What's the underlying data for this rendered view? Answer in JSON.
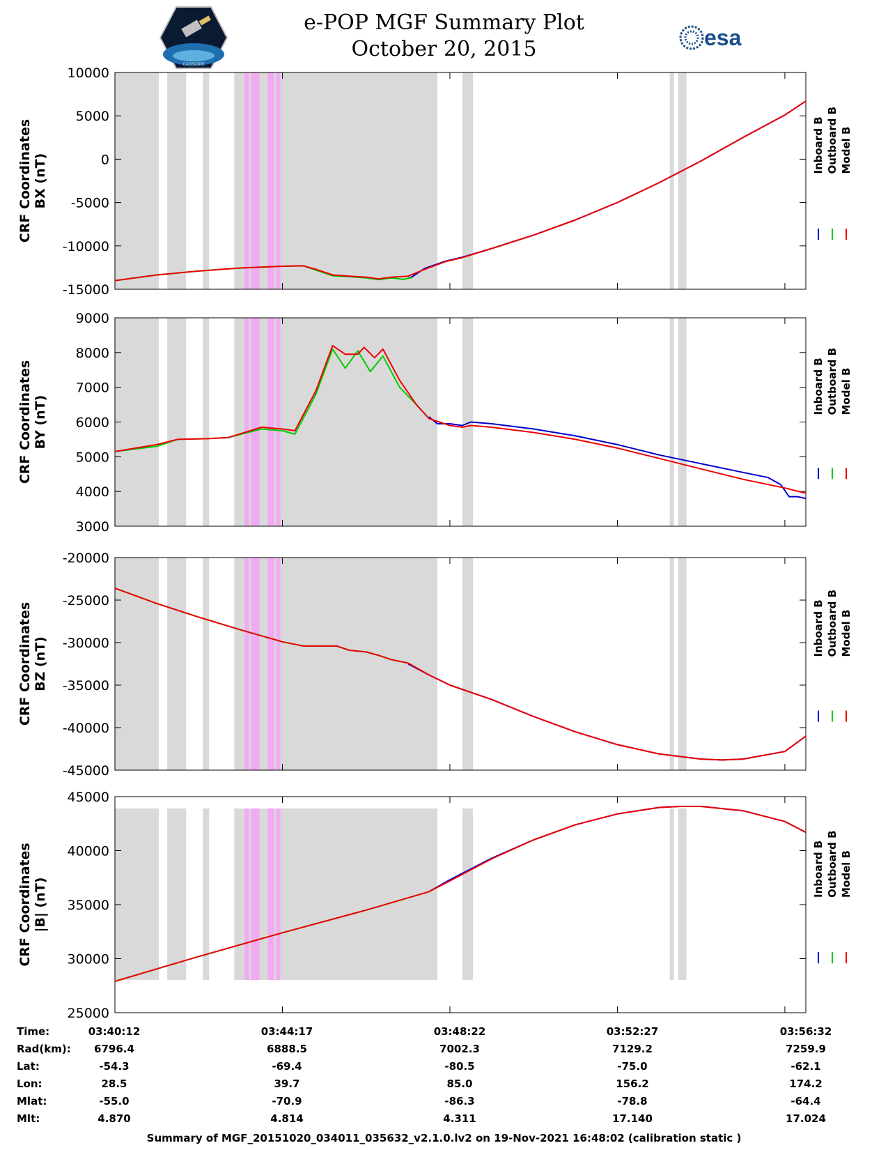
{
  "header": {
    "title_line1": "e-POP MGF Summary Plot",
    "title_line2": "October 20, 2015",
    "logo_left": "cassiope-mission-logo",
    "logo_left_text": "CASSIOPE",
    "logo_right": "esa-logo",
    "logo_right_text": "esa"
  },
  "colors": {
    "inboard": "#0000cc",
    "outboard": "#00cc00",
    "model": "#ee0000",
    "gap_shade": "#d9d9d9",
    "event_shade": "#f2aaf2"
  },
  "chart_data": [
    {
      "type": "line",
      "ylabel": "CRF Coordinates BX (nT)",
      "ylabel_lines": [
        "CRF Coordinates",
        "BX (nT)"
      ],
      "ylim": [
        -15000,
        10000
      ],
      "yticks": [
        10000,
        5000,
        0,
        -5000,
        -10000,
        -15000
      ],
      "legend": [
        "Inboard B",
        "Outboard B",
        "Model B"
      ],
      "series": [
        {
          "name": "Inboard B",
          "points": [
            [
              3.0,
              -13750
            ],
            [
              3.1,
              -13550
            ],
            [
              3.4,
              -12600
            ],
            [
              3.9,
              -11750
            ],
            [
              4.3,
              -11300
            ],
            [
              5.0,
              -10300
            ],
            [
              6.0,
              -8750
            ],
            [
              7.0,
              -7000
            ],
            [
              8.0,
              -5000
            ],
            [
              9.0,
              -2700
            ],
            [
              10.0,
              -200
            ],
            [
              11.0,
              2500
            ],
            [
              12.0,
              5100
            ],
            [
              12.5,
              6700
            ]
          ]
        },
        {
          "name": "Outboard B",
          "points": [
            [
              -4.0,
              -14000
            ],
            [
              -3.0,
              -13350
            ],
            [
              -2.0,
              -12900
            ],
            [
              -1.0,
              -12550
            ],
            [
              0.0,
              -12350
            ],
            [
              0.5,
              -12300
            ],
            [
              0.8,
              -12800
            ],
            [
              1.2,
              -13450
            ],
            [
              1.6,
              -13550
            ],
            [
              2.0,
              -13700
            ],
            [
              2.3,
              -13900
            ],
            [
              2.6,
              -13700
            ],
            [
              2.9,
              -13850
            ],
            [
              3.1,
              -13650
            ]
          ]
        },
        {
          "name": "Model B",
          "points": [
            [
              -4.0,
              -14000
            ],
            [
              -3.0,
              -13350
            ],
            [
              -2.0,
              -12900
            ],
            [
              -1.0,
              -12550
            ],
            [
              0.0,
              -12350
            ],
            [
              0.5,
              -12300
            ],
            [
              0.8,
              -12700
            ],
            [
              1.2,
              -13350
            ],
            [
              1.6,
              -13500
            ],
            [
              2.0,
              -13600
            ],
            [
              2.3,
              -13800
            ],
            [
              2.6,
              -13600
            ],
            [
              3.0,
              -13500
            ],
            [
              3.4,
              -12700
            ],
            [
              3.9,
              -11800
            ],
            [
              4.3,
              -11350
            ],
            [
              5.0,
              -10300
            ],
            [
              6.0,
              -8750
            ],
            [
              7.0,
              -7000
            ],
            [
              8.0,
              -5000
            ],
            [
              9.0,
              -2700
            ],
            [
              10.0,
              -200
            ],
            [
              11.0,
              2500
            ],
            [
              12.0,
              5100
            ],
            [
              12.5,
              6700
            ]
          ]
        }
      ]
    },
    {
      "type": "line",
      "ylabel": "CRF Coordinates BY (nT)",
      "ylabel_lines": [
        "CRF Coordinates",
        "BY (nT)"
      ],
      "ylim": [
        3000,
        9000
      ],
      "yticks": [
        9000,
        8000,
        7000,
        6000,
        5000,
        4000,
        3000
      ],
      "legend": [
        "Inboard B",
        "Outboard B",
        "Model B"
      ],
      "series": [
        {
          "name": "Inboard B",
          "points": [
            [
              3.5,
              6150
            ],
            [
              3.7,
              5950
            ],
            [
              4.0,
              5950
            ],
            [
              4.3,
              5900
            ],
            [
              4.5,
              6000
            ],
            [
              5.0,
              5950
            ],
            [
              6.0,
              5800
            ],
            [
              7.0,
              5600
            ],
            [
              8.0,
              5350
            ],
            [
              9.0,
              5050
            ],
            [
              10.0,
              4800
            ],
            [
              11.0,
              4550
            ],
            [
              11.6,
              4400
            ],
            [
              11.9,
              4200
            ],
            [
              12.1,
              3850
            ],
            [
              12.3,
              3850
            ],
            [
              12.5,
              3800
            ]
          ]
        },
        {
          "name": "Outboard B",
          "points": [
            [
              -4.0,
              5150
            ],
            [
              -3.0,
              5300
            ],
            [
              -2.5,
              5500
            ],
            [
              -1.8,
              5520
            ],
            [
              -1.3,
              5550
            ],
            [
              -0.5,
              5800
            ],
            [
              0.0,
              5750
            ],
            [
              0.3,
              5650
            ],
            [
              0.8,
              6800
            ],
            [
              1.2,
              8100
            ],
            [
              1.5,
              7550
            ],
            [
              1.8,
              8050
            ],
            [
              2.1,
              7450
            ],
            [
              2.4,
              7900
            ],
            [
              2.8,
              7000
            ],
            [
              3.2,
              6500
            ],
            [
              3.5,
              6100
            ]
          ]
        },
        {
          "name": "Model B",
          "points": [
            [
              -4.0,
              5150
            ],
            [
              -3.0,
              5350
            ],
            [
              -2.5,
              5500
            ],
            [
              -1.8,
              5520
            ],
            [
              -1.3,
              5550
            ],
            [
              -0.5,
              5850
            ],
            [
              0.0,
              5800
            ],
            [
              0.3,
              5750
            ],
            [
              0.8,
              6900
            ],
            [
              1.2,
              8200
            ],
            [
              1.5,
              7950
            ],
            [
              1.8,
              7950
            ],
            [
              1.95,
              8150
            ],
            [
              2.2,
              7850
            ],
            [
              2.4,
              8100
            ],
            [
              2.8,
              7200
            ],
            [
              3.2,
              6500
            ],
            [
              3.5,
              6100
            ],
            [
              4.0,
              5900
            ],
            [
              4.3,
              5850
            ],
            [
              4.5,
              5900
            ],
            [
              5.0,
              5850
            ],
            [
              6.0,
              5700
            ],
            [
              7.0,
              5500
            ],
            [
              8.0,
              5250
            ],
            [
              9.0,
              4950
            ],
            [
              10.0,
              4650
            ],
            [
              11.0,
              4350
            ],
            [
              12.0,
              4100
            ],
            [
              12.5,
              3950
            ]
          ]
        }
      ]
    },
    {
      "type": "line",
      "ylabel": "CRF Coordinates BZ (nT)",
      "ylabel_lines": [
        "CRF Coordinates",
        "BZ (nT)"
      ],
      "ylim": [
        -45000,
        -20000
      ],
      "yticks": [
        -20000,
        -25000,
        -30000,
        -35000,
        -40000,
        -45000
      ],
      "legend": [
        "Inboard B",
        "Outboard B",
        "Model B"
      ],
      "series": [
        {
          "name": "Inboard B",
          "points": [
            [
              3.0,
              -32500
            ],
            [
              3.5,
              -33800
            ],
            [
              4.0,
              -35000
            ],
            [
              5.0,
              -36700
            ],
            [
              6.0,
              -38700
            ],
            [
              7.0,
              -40500
            ],
            [
              8.0,
              -42000
            ],
            [
              9.0,
              -43100
            ],
            [
              10.0,
              -43700
            ],
            [
              10.5,
              -43800
            ],
            [
              11.0,
              -43700
            ],
            [
              12.0,
              -42800
            ],
            [
              12.5,
              -41000
            ]
          ]
        },
        {
          "name": "Outboard B",
          "points": [
            [
              -4.0,
              -23600
            ],
            [
              -3.0,
              -25400
            ],
            [
              -2.0,
              -27000
            ],
            [
              -1.0,
              -28500
            ],
            [
              0.0,
              -29900
            ],
            [
              0.5,
              -30400
            ],
            [
              1.0,
              -30400
            ],
            [
              1.3,
              -30400
            ],
            [
              1.6,
              -30900
            ],
            [
              2.0,
              -31100
            ],
            [
              2.3,
              -31500
            ],
            [
              2.6,
              -32000
            ],
            [
              3.0,
              -32400
            ]
          ]
        },
        {
          "name": "Model B",
          "points": [
            [
              -4.0,
              -23600
            ],
            [
              -3.0,
              -25400
            ],
            [
              -2.0,
              -27000
            ],
            [
              -1.0,
              -28500
            ],
            [
              0.0,
              -29900
            ],
            [
              0.5,
              -30400
            ],
            [
              1.0,
              -30400
            ],
            [
              1.3,
              -30400
            ],
            [
              1.6,
              -30900
            ],
            [
              2.0,
              -31100
            ],
            [
              2.3,
              -31500
            ],
            [
              2.6,
              -32000
            ],
            [
              3.0,
              -32400
            ],
            [
              3.5,
              -33800
            ],
            [
              4.0,
              -35000
            ],
            [
              5.0,
              -36700
            ],
            [
              6.0,
              -38700
            ],
            [
              7.0,
              -40500
            ],
            [
              8.0,
              -42000
            ],
            [
              9.0,
              -43100
            ],
            [
              10.0,
              -43700
            ],
            [
              10.5,
              -43800
            ],
            [
              11.0,
              -43700
            ],
            [
              12.0,
              -42800
            ],
            [
              12.5,
              -41000
            ]
          ]
        }
      ]
    },
    {
      "type": "line",
      "ylabel": "CRF Coordinates |B| (nT)",
      "ylabel_lines": [
        "CRF Coordinates",
        "|B| (nT)"
      ],
      "ylim": [
        25000,
        45000
      ],
      "yticks": [
        45000,
        40000,
        35000,
        30000,
        25000
      ],
      "legend": [
        "Inboard B",
        "Outboard B",
        "Model B"
      ],
      "series": [
        {
          "name": "Inboard B",
          "points": [
            [
              3.5,
              36200
            ],
            [
              4.0,
              37300
            ],
            [
              5.0,
              39300
            ],
            [
              6.0,
              41000
            ],
            [
              7.0,
              42400
            ],
            [
              8.0,
              43400
            ],
            [
              9.0,
              44000
            ],
            [
              9.5,
              44100
            ],
            [
              10.0,
              44100
            ],
            [
              11.0,
              43700
            ],
            [
              12.0,
              42700
            ],
            [
              12.5,
              41700
            ]
          ]
        },
        {
          "name": "Outboard B",
          "points": [
            [
              -4.0,
              27900
            ],
            [
              -2.0,
              30200
            ],
            [
              0.0,
              32400
            ],
            [
              2.0,
              34500
            ],
            [
              3.5,
              36200
            ]
          ]
        },
        {
          "name": "Model B",
          "points": [
            [
              -4.0,
              27900
            ],
            [
              -2.0,
              30200
            ],
            [
              0.0,
              32400
            ],
            [
              2.0,
              34500
            ],
            [
              3.5,
              36200
            ],
            [
              4.0,
              37200
            ],
            [
              5.0,
              39250
            ],
            [
              6.0,
              41000
            ],
            [
              7.0,
              42400
            ],
            [
              8.0,
              43400
            ],
            [
              9.0,
              44000
            ],
            [
              9.5,
              44100
            ],
            [
              10.0,
              44100
            ],
            [
              11.0,
              43700
            ],
            [
              12.0,
              42700
            ],
            [
              12.5,
              41700
            ]
          ]
        }
      ]
    }
  ],
  "time_axis": {
    "xlim": [
      -4.0,
      12.5
    ],
    "ticks": [
      -4.0,
      0.0,
      4.0,
      8.0,
      12.0
    ],
    "gray_intervals": [
      [
        -4.0,
        -2.95
      ],
      [
        -2.75,
        -2.6
      ],
      [
        -2.6,
        -2.3
      ],
      [
        -1.9,
        -1.75
      ],
      [
        -1.15,
        1.15
      ],
      [
        1.15,
        2.5
      ],
      [
        2.5,
        3.7
      ],
      [
        4.3,
        4.55
      ],
      [
        9.25,
        9.35
      ],
      [
        9.45,
        9.65
      ]
    ],
    "pink_intervals": [
      [
        -0.9,
        -0.8
      ],
      [
        -0.75,
        -0.55
      ],
      [
        -0.35,
        -0.2
      ],
      [
        -0.15,
        -0.05
      ]
    ]
  },
  "ephemeris": {
    "labels": [
      "Time:",
      "Rad(km):",
      "Lat:",
      "Lon:",
      "Mlat:",
      "Mlt:"
    ],
    "columns": [
      [
        "03:40:12",
        "6796.4",
        "-54.3",
        "28.5",
        "-55.0",
        "4.870"
      ],
      [
        "03:44:17",
        "6888.5",
        "-69.4",
        "39.7",
        "-70.9",
        "4.814"
      ],
      [
        "03:48:22",
        "7002.3",
        "-80.5",
        "85.0",
        "-86.3",
        "4.311"
      ],
      [
        "03:52:27",
        "7129.2",
        "-75.0",
        "156.2",
        "-78.8",
        "17.140"
      ],
      [
        "03:56:32",
        "7259.9",
        "-62.1",
        "174.2",
        "-64.4",
        "17.024"
      ]
    ]
  },
  "footer": {
    "text": "Summary of MGF_20151020_034011_035632_v2.1.0.lv2 on 19-Nov-2021 16:48:02 (calibration static )"
  }
}
